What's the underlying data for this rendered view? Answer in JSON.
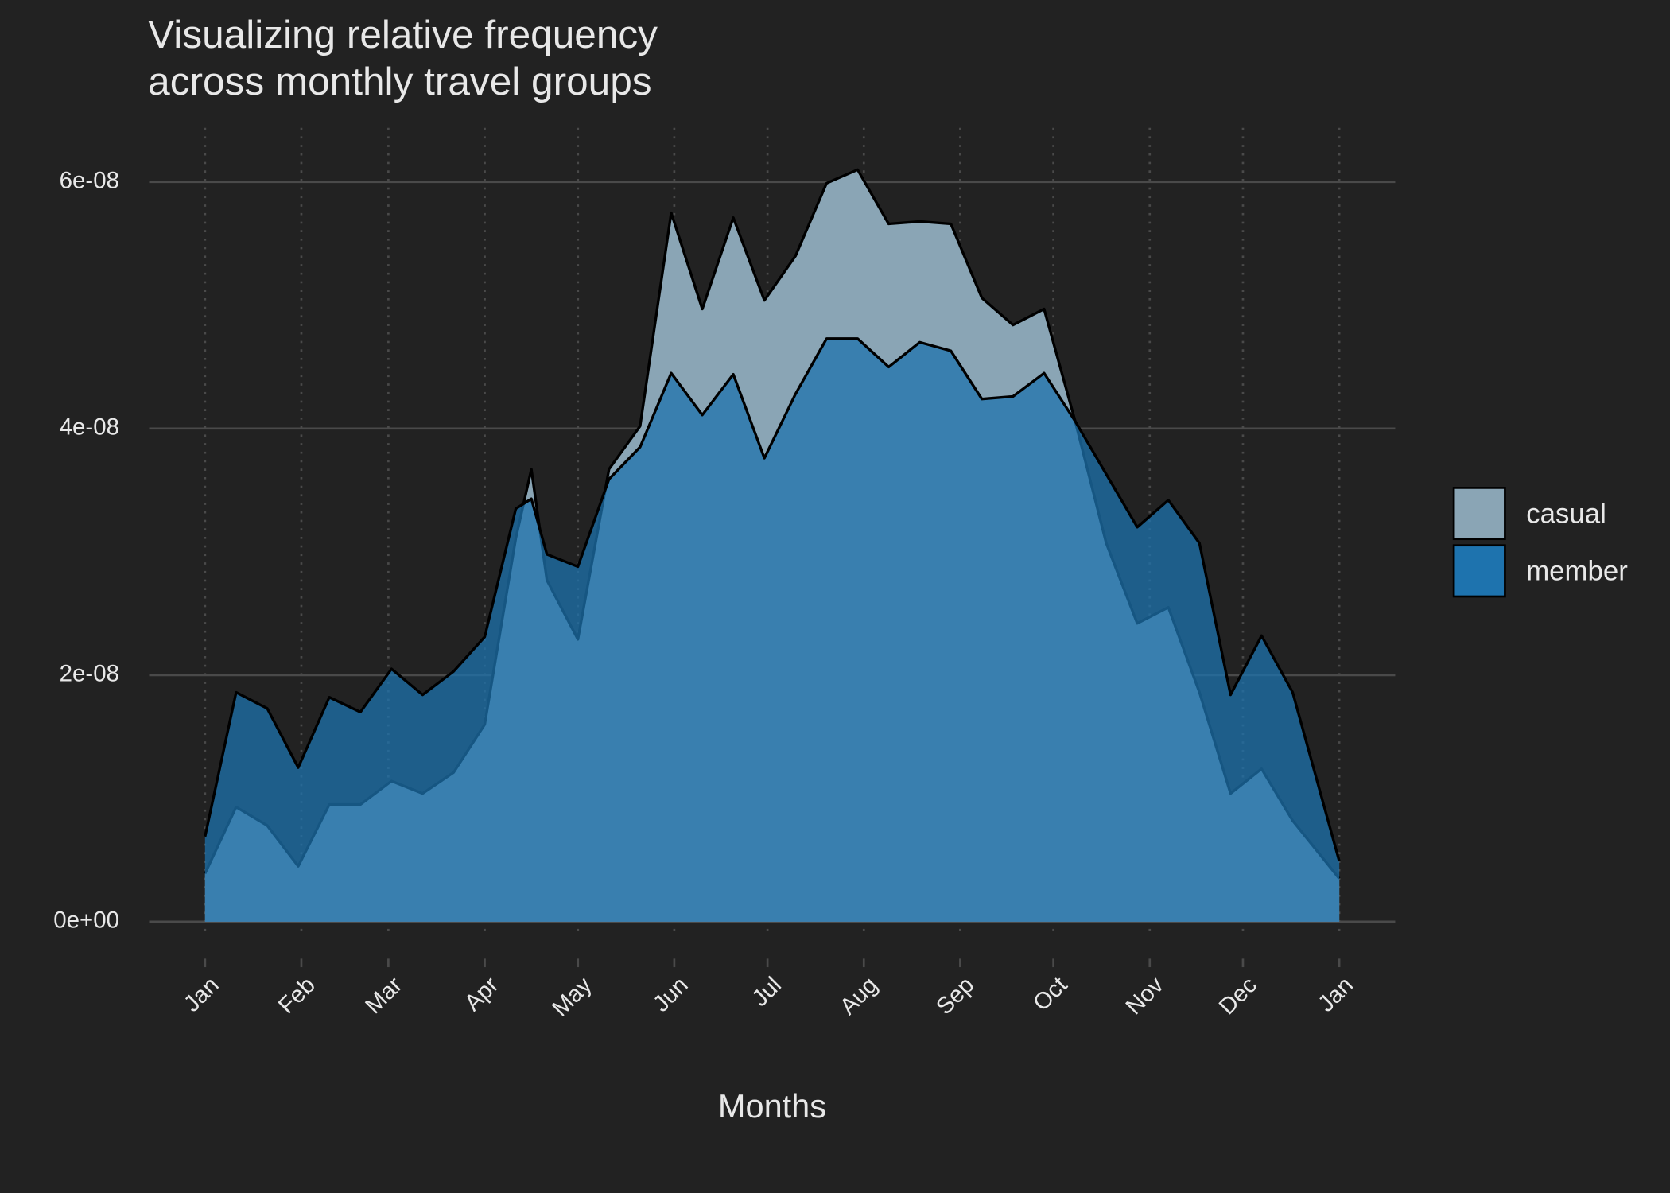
{
  "chart_data": {
    "type": "density",
    "title": [
      "Visualizing relative frequency",
      "across monthly travel groups"
    ],
    "x_label": "Months",
    "x": [
      0,
      10,
      20,
      30,
      40,
      50,
      60,
      70,
      80,
      90,
      100,
      105,
      110,
      120,
      130,
      140,
      150,
      160,
      170,
      180,
      190,
      200,
      210,
      220,
      230,
      240,
      250,
      260,
      270,
      280,
      290,
      300,
      310,
      320,
      330,
      340,
      350,
      365
    ],
    "series": [
      {
        "name": "casual",
        "color": "#8aa5b5",
        "values": [
          3.9e-09,
          9.3e-09,
          7.8e-09,
          4.5e-09,
          9.5e-09,
          9.5e-09,
          1.14e-08,
          1.04e-08,
          1.21e-08,
          1.6e-08,
          3.11e-08,
          3.67e-08,
          2.77e-08,
          2.29e-08,
          3.67e-08,
          4.02e-08,
          5.75e-08,
          4.97e-08,
          5.71e-08,
          5.04e-08,
          5.4e-08,
          5.99e-08,
          6.1e-08,
          5.66e-08,
          5.68e-08,
          5.66e-08,
          5.06e-08,
          4.84e-08,
          4.97e-08,
          4.06e-08,
          3.07e-08,
          2.42e-08,
          2.55e-08,
          1.86e-08,
          1.04e-08,
          1.24e-08,
          8.2e-09,
          3.5e-09
        ]
      },
      {
        "name": "member",
        "color": "#1e73ae",
        "values": [
          6.9e-09,
          1.86e-08,
          1.73e-08,
          1.25e-08,
          1.82e-08,
          1.7e-08,
          2.05e-08,
          1.84e-08,
          2.03e-08,
          2.31e-08,
          3.35e-08,
          3.43e-08,
          2.98e-08,
          2.88e-08,
          3.59e-08,
          3.85e-08,
          4.45e-08,
          4.11e-08,
          4.44e-08,
          3.76e-08,
          4.28e-08,
          4.73e-08,
          4.73e-08,
          4.5e-08,
          4.7e-08,
          4.63e-08,
          4.24e-08,
          4.26e-08,
          4.45e-08,
          4.06e-08,
          3.63e-08,
          3.2e-08,
          3.42e-08,
          3.07e-08,
          1.84e-08,
          2.32e-08,
          1.86e-08,
          4.9e-09
        ]
      }
    ],
    "xlim": [
      -18,
      383
    ],
    "xticks": [
      {
        "value": 0,
        "label": "Jan"
      },
      {
        "value": 31,
        "label": "Feb"
      },
      {
        "value": 59,
        "label": "Mar"
      },
      {
        "value": 90,
        "label": "Apr"
      },
      {
        "value": 120,
        "label": "May"
      },
      {
        "value": 151,
        "label": "Jun"
      },
      {
        "value": 181,
        "label": "Jul"
      },
      {
        "value": 212,
        "label": "Aug"
      },
      {
        "value": 243,
        "label": "Sep"
      },
      {
        "value": 273,
        "label": "Oct"
      },
      {
        "value": 304,
        "label": "Nov"
      },
      {
        "value": 334,
        "label": "Dec"
      },
      {
        "value": 365,
        "label": "Jan"
      }
    ],
    "ylim": [
      -3e-09,
      6.5e-08
    ],
    "yticks": [
      {
        "value": 0,
        "label": "0e+00"
      },
      {
        "value": 2e-08,
        "label": "2e-08"
      },
      {
        "value": 4e-08,
        "label": "4e-08"
      },
      {
        "value": 6e-08,
        "label": "6e-08"
      }
    ],
    "grid": true,
    "legend": "right"
  }
}
